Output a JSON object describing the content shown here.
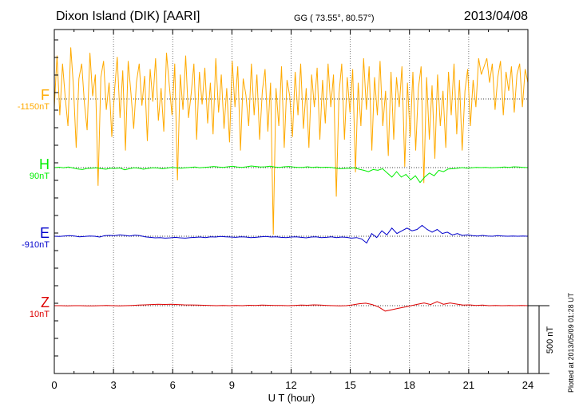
{
  "header": {
    "station": "Dixon Island (DIK)  [AARI]",
    "coords": "GG ( 73.55°,  80.57°)",
    "date": "2013/04/08"
  },
  "footer": {
    "plotted": "Plotted at 2013/05/09 01:28 UT"
  },
  "chart_data": {
    "type": "line",
    "title": "Dixon Island (DIK)  [AARI]",
    "xlabel": "U T (hour)",
    "xlim": [
      0,
      24
    ],
    "xticks": [
      "0",
      "3",
      "6",
      "9",
      "12",
      "15",
      "18",
      "21",
      "24"
    ],
    "scale_label": "500 nT",
    "scale_nT": 500,
    "series": [
      {
        "name": "F",
        "offset_label": "-1150nT",
        "color": "#ffaa00",
        "baseline_nT": 0,
        "values": [
          -60,
          320,
          -120,
          260,
          10,
          -200,
          380,
          90,
          -360,
          150,
          260,
          -30,
          -230,
          340,
          20,
          180,
          -640,
          160,
          280,
          -80,
          120,
          -280,
          60,
          310,
          -140,
          210,
          -380,
          280,
          40,
          -220,
          120,
          260,
          -50,
          170,
          -310,
          220,
          -20,
          300,
          -160,
          80,
          -240,
          340,
          100,
          -120,
          260,
          -600,
          180,
          -80,
          320,
          -140,
          40,
          260,
          -300,
          200,
          -40,
          230,
          -180,
          120,
          -260,
          300,
          -100,
          180,
          -220,
          80,
          -320,
          280,
          -60,
          240,
          -380,
          150,
          30,
          -200,
          260,
          -120,
          180,
          -300,
          60,
          220,
          -240,
          120,
          -1000,
          80,
          -200,
          240,
          -360,
          140,
          20,
          -280,
          200,
          -120,
          260,
          -220,
          80,
          -360,
          180,
          -60,
          230,
          -300,
          140,
          -180,
          260,
          -60,
          180,
          -720,
          40,
          260,
          -300,
          160,
          -100,
          220,
          -540,
          120,
          -200,
          300,
          -80,
          240,
          -380,
          160,
          -120,
          280,
          -200,
          60,
          -420,
          200,
          -300,
          160,
          -60,
          240,
          -500,
          120,
          -280,
          200,
          -380,
          80,
          240,
          -620,
          160,
          -300,
          100,
          -440,
          180,
          -200,
          60,
          -360,
          200,
          -120,
          260,
          -260,
          140,
          -380,
          60,
          220,
          -200,
          140,
          -60,
          300,
          180,
          240,
          300,
          120,
          260,
          -80,
          160,
          280,
          -120,
          200,
          60,
          240,
          -100,
          180,
          260,
          -60,
          220,
          120
        ]
      },
      {
        "name": "H",
        "offset_label": "90nT",
        "color": "#00ee00",
        "baseline_nT": 0,
        "values": [
          0,
          3,
          -2,
          4,
          -3,
          -10,
          -14,
          -6,
          -4,
          -2,
          -8,
          -12,
          -4,
          -6,
          -3,
          -16,
          -8,
          -2,
          -4,
          -12,
          -6,
          -2,
          -3,
          -8,
          -4,
          2,
          -2,
          -4,
          -1,
          2,
          4,
          -2,
          2,
          4,
          8,
          4,
          2,
          6,
          10,
          4,
          2,
          6,
          12,
          8,
          4,
          6,
          10,
          4,
          2,
          6,
          8,
          4,
          2,
          2,
          6,
          2,
          4,
          2,
          3,
          2,
          -4,
          -8,
          -6,
          -4,
          -2,
          -12,
          -20,
          -30,
          -14,
          -20,
          -8,
          -40,
          -70,
          -30,
          -70,
          -50,
          -90,
          -60,
          -110,
          -70,
          -40,
          -60,
          -20,
          -30,
          -10,
          -8,
          -4,
          0,
          -4,
          -2,
          2,
          0,
          2,
          -2,
          0,
          2,
          4,
          2,
          6,
          4,
          2,
          0
        ]
      },
      {
        "name": "E",
        "offset_label": "-910nT",
        "color": "#0000cc",
        "baseline_nT": 0,
        "values": [
          0,
          -2,
          2,
          4,
          2,
          -4,
          -2,
          2,
          0,
          -6,
          4,
          6,
          4,
          10,
          6,
          2,
          8,
          4,
          -4,
          -8,
          -12,
          -10,
          -14,
          -12,
          -8,
          -12,
          -14,
          -10,
          -8,
          -6,
          -10,
          -4,
          -6,
          -2,
          -4,
          -6,
          -8,
          -4,
          -6,
          -10,
          -8,
          -4,
          -2,
          -6,
          -4,
          -8,
          -10,
          -6,
          -4,
          -8,
          -12,
          -6,
          -4,
          -10,
          -8,
          -4,
          -10,
          -6,
          -8,
          -14,
          -10,
          -20,
          -50,
          20,
          -10,
          40,
          10,
          60,
          20,
          40,
          60,
          40,
          50,
          80,
          50,
          30,
          50,
          20,
          30,
          10,
          20,
          6,
          10,
          4,
          2,
          6,
          2,
          0,
          4,
          2,
          0,
          2,
          0,
          2,
          0
        ]
      },
      {
        "name": "Z",
        "offset_label": "10nT",
        "color": "#dd0000",
        "baseline_nT": 0,
        "values": [
          0,
          0,
          -1,
          0,
          0,
          -2,
          -1,
          0,
          1,
          0,
          -1,
          0,
          2,
          4,
          6,
          8,
          10,
          9,
          10,
          8,
          6,
          5,
          4,
          3,
          2,
          0,
          1,
          0,
          1,
          0,
          3,
          2,
          4,
          3,
          2,
          1,
          0,
          2,
          4,
          3,
          6,
          4,
          2,
          0,
          -2,
          0,
          6,
          14,
          18,
          8,
          -10,
          -40,
          -30,
          -20,
          -10,
          0,
          10,
          20,
          8,
          30,
          10,
          20,
          12,
          4,
          6,
          2,
          4,
          0,
          2,
          0,
          1,
          0,
          1,
          0
        ]
      }
    ]
  }
}
